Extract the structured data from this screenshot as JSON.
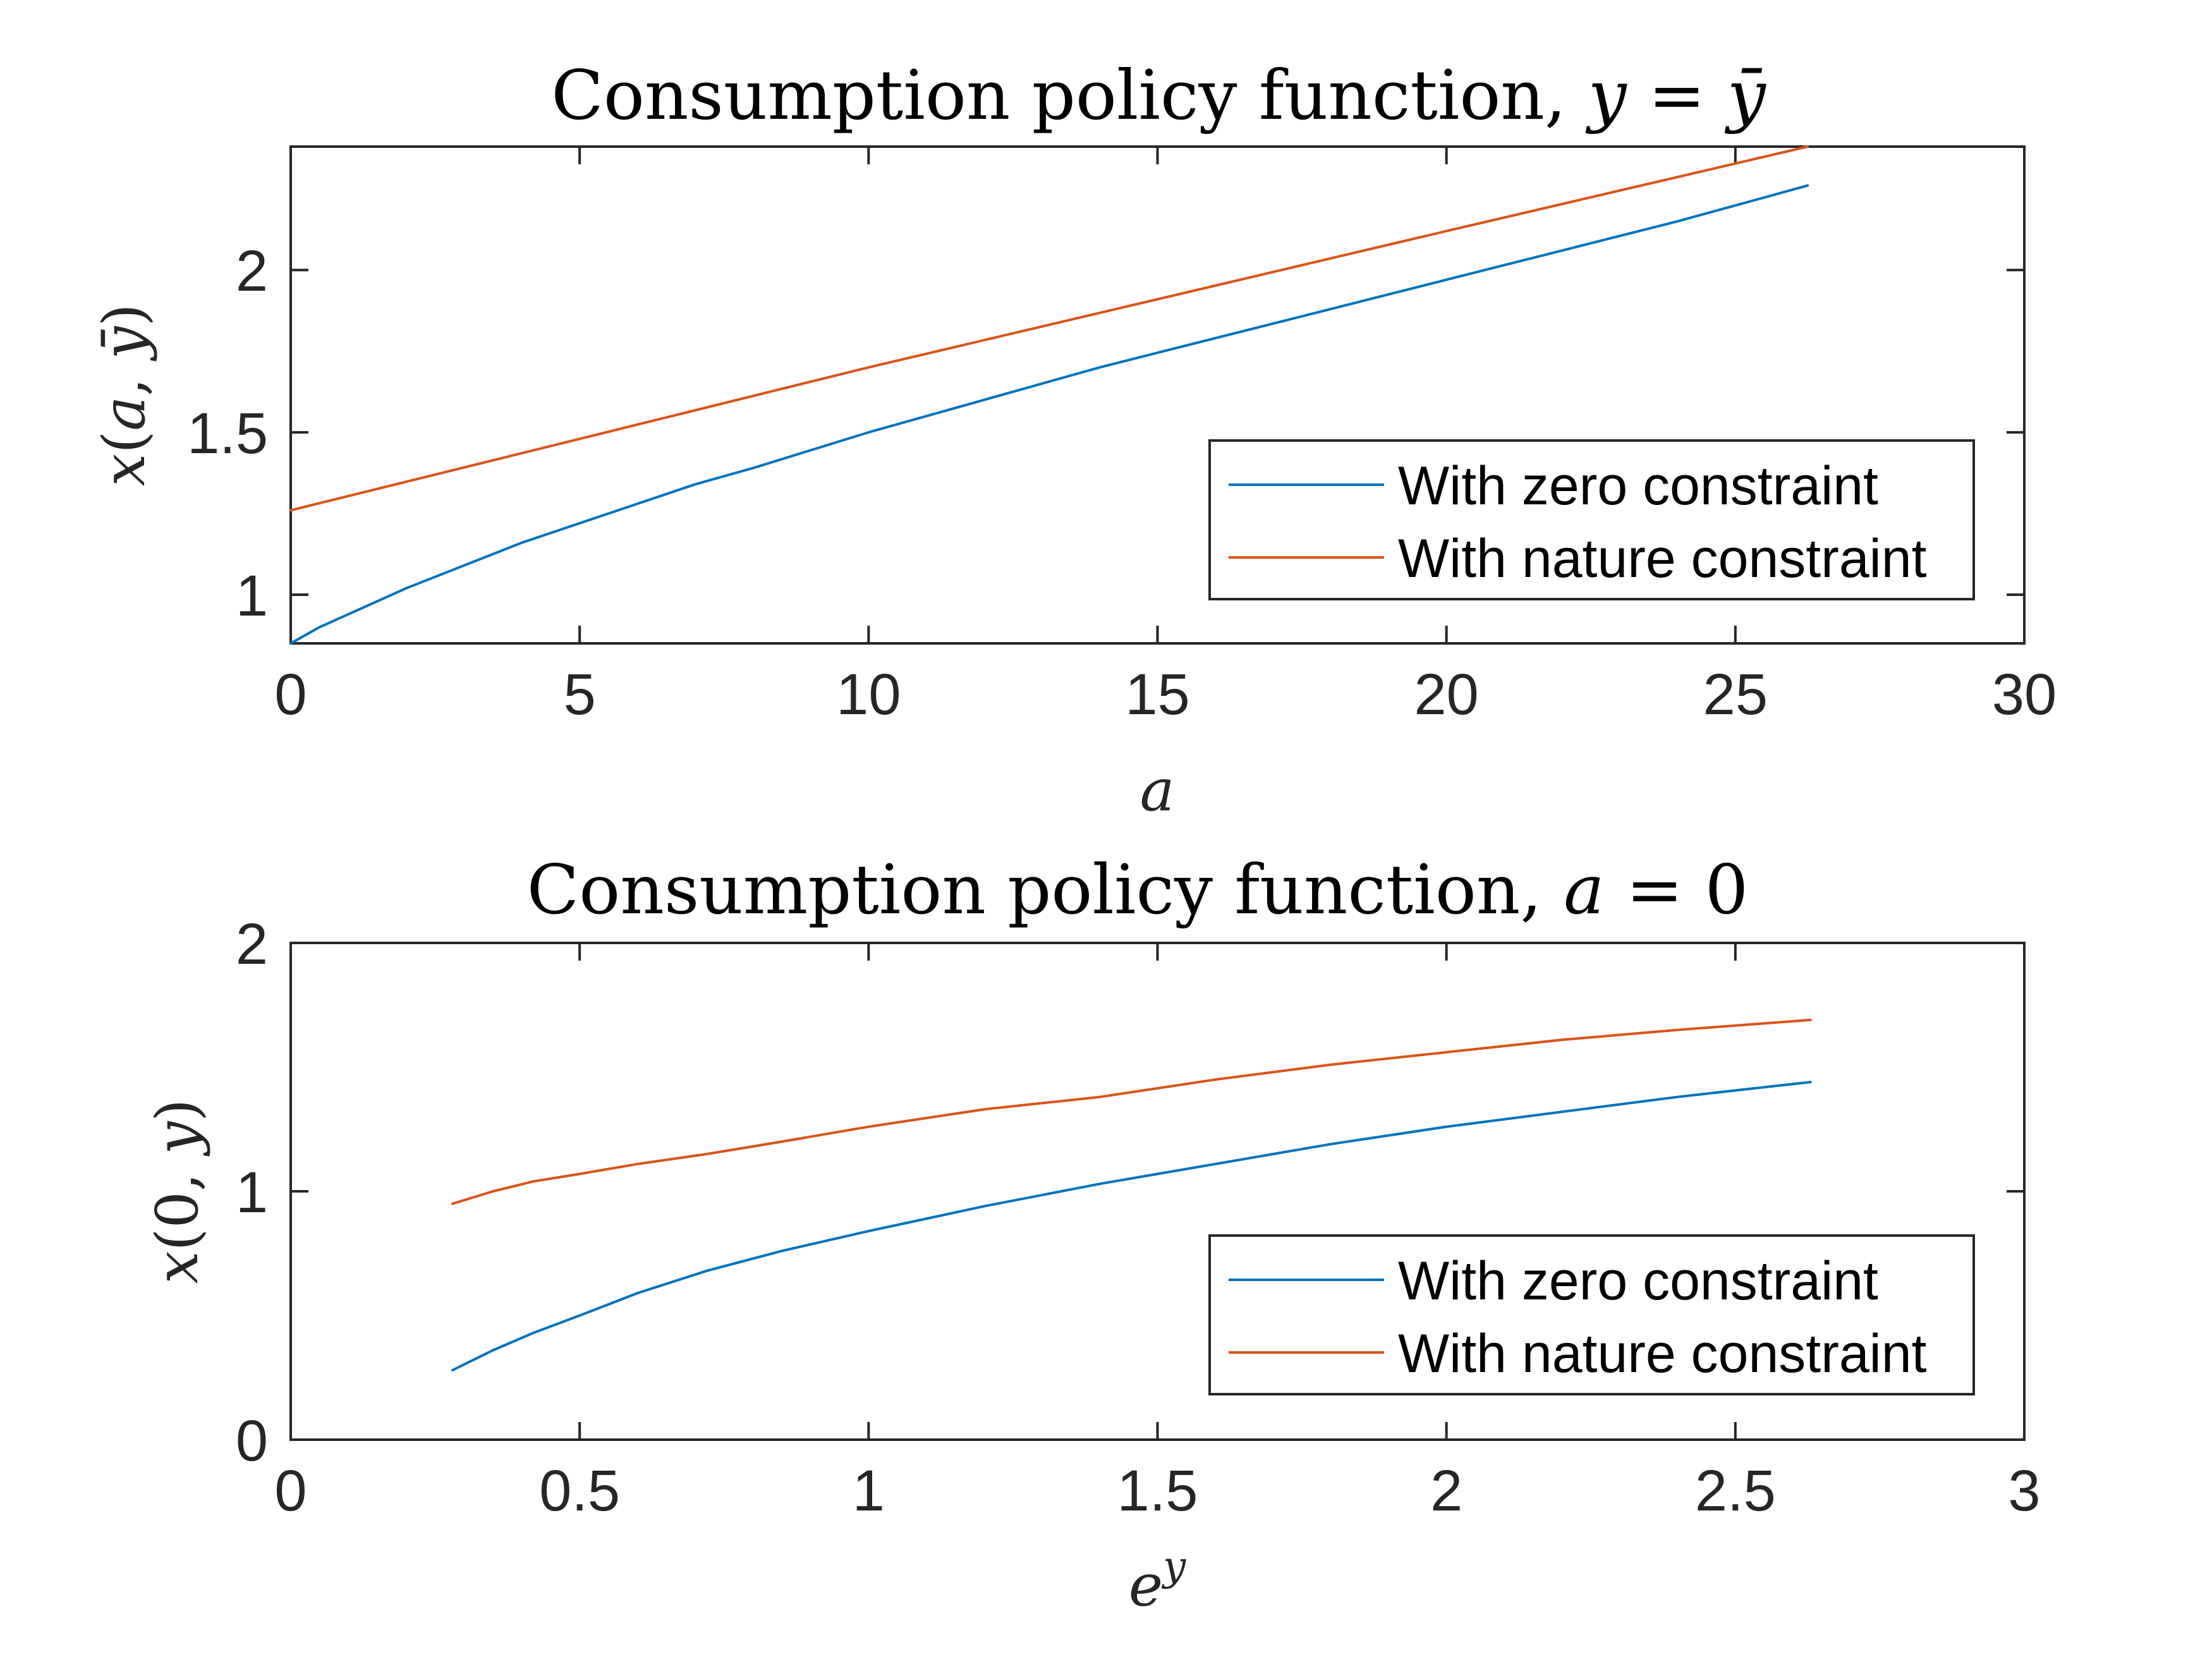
{
  "chart_data": [
    {
      "type": "line",
      "title": "Consumption policy function, y = ȳ",
      "xlabel": "a",
      "ylabel": "x(a, ȳ)",
      "xlim": [
        0,
        30
      ],
      "ylim": [
        0.85,
        2.38
      ],
      "xticks": [
        0,
        5,
        10,
        15,
        20,
        25,
        30
      ],
      "yticks": [
        1,
        1.5,
        2
      ],
      "xtick_labels": [
        "0",
        "5",
        "10",
        "15",
        "20",
        "25",
        "30"
      ],
      "ytick_labels": [
        "1",
        "1.5",
        "2"
      ],
      "grid": false,
      "legend_position": "bottom-right",
      "series": [
        {
          "name": "With zero constraint",
          "color": "#0072BD",
          "x": [
            0,
            0.5,
            1,
            2,
            3,
            4,
            5,
            6,
            7,
            8,
            10,
            12,
            14,
            16,
            18,
            20,
            22,
            24,
            26.25
          ],
          "y": [
            0.85,
            0.9,
            0.94,
            1.02,
            1.09,
            1.16,
            1.22,
            1.28,
            1.34,
            1.39,
            1.5,
            1.6,
            1.7,
            1.79,
            1.88,
            1.97,
            2.06,
            2.15,
            2.26
          ]
        },
        {
          "name": "With nature constraint",
          "color": "#D95319",
          "x": [
            0,
            5,
            10,
            15,
            20,
            26.25
          ],
          "y": [
            1.26,
            1.48,
            1.7,
            1.91,
            2.12,
            2.38
          ]
        }
      ]
    },
    {
      "type": "line",
      "title": "Consumption policy function, a = 0",
      "xlabel": "e^y",
      "ylabel": "x(0, y)",
      "xlim": [
        0,
        3
      ],
      "ylim": [
        0,
        2
      ],
      "xticks": [
        0,
        0.5,
        1,
        1.5,
        2,
        2.5,
        3
      ],
      "yticks": [
        0,
        1,
        2
      ],
      "xtick_labels": [
        "0",
        "0.5",
        "1",
        "1.5",
        "2",
        "2.5",
        "3"
      ],
      "ytick_labels": [
        "0",
        "1",
        "2"
      ],
      "grid": false,
      "legend_position": "bottom-right",
      "series": [
        {
          "name": "With zero constraint",
          "color": "#0072BD",
          "x": [
            0.28,
            0.35,
            0.42,
            0.5,
            0.6,
            0.72,
            0.85,
            1.0,
            1.2,
            1.4,
            1.6,
            1.8,
            2.0,
            2.2,
            2.4,
            2.63
          ],
          "y": [
            0.28,
            0.36,
            0.43,
            0.5,
            0.59,
            0.68,
            0.76,
            0.84,
            0.94,
            1.03,
            1.11,
            1.19,
            1.26,
            1.32,
            1.38,
            1.44
          ]
        },
        {
          "name": "With nature constraint",
          "color": "#D95319",
          "x": [
            0.28,
            0.35,
            0.42,
            0.5,
            0.6,
            0.72,
            0.85,
            1.0,
            1.2,
            1.4,
            1.6,
            1.8,
            2.0,
            2.2,
            2.4,
            2.63
          ],
          "y": [
            0.95,
            1.0,
            1.04,
            1.07,
            1.11,
            1.15,
            1.2,
            1.26,
            1.33,
            1.38,
            1.45,
            1.51,
            1.56,
            1.61,
            1.65,
            1.69
          ]
        }
      ]
    }
  ]
}
